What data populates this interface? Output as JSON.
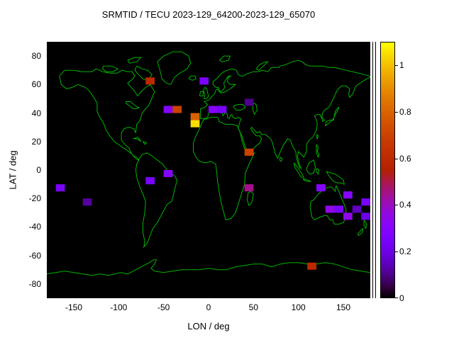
{
  "chart_data": {
    "type": "heatmap",
    "title": "SRMTID / TECU 2023-129_64200-2023-129_65070",
    "xlabel": "LON / deg",
    "ylabel": "LAT / deg",
    "xlim": [
      -180,
      180
    ],
    "ylim": [
      -90,
      90
    ],
    "x_ticks": [
      -150,
      -100,
      -50,
      0,
      50,
      100,
      150
    ],
    "y_ticks": [
      -80,
      -60,
      -40,
      -20,
      0,
      20,
      40,
      60,
      80
    ],
    "grid": false,
    "basemap": "world coastlines drawn in green on black ocean background",
    "cell_size_deg": {
      "lon": 10,
      "lat": 5
    },
    "colorbar": {
      "min": 0,
      "max": 1.1,
      "ticks": [
        0,
        0.2,
        0.4,
        0.6,
        0.8,
        1
      ],
      "palette": "gnuplot pm3d: black - violet - magenta - red - orange - yellow"
    },
    "cells": [
      {
        "lon": -65,
        "lat": 62.5,
        "value": 0.6
      },
      {
        "lon": -5,
        "lat": 62.5,
        "value": 0.25
      },
      {
        "lon": -45,
        "lat": 42.5,
        "value": 0.3
      },
      {
        "lon": -35,
        "lat": 42.5,
        "value": 0.7
      },
      {
        "lon": -15,
        "lat": 37.5,
        "value": 0.8
      },
      {
        "lon": -15,
        "lat": 32.5,
        "value": 1.05
      },
      {
        "lon": 5,
        "lat": 42.5,
        "value": 0.3
      },
      {
        "lon": 15,
        "lat": 42.5,
        "value": 0.25
      },
      {
        "lon": 45,
        "lat": 47.5,
        "value": 0.1
      },
      {
        "lon": 45,
        "lat": 12.5,
        "value": 0.7
      },
      {
        "lon": -45,
        "lat": -2.5,
        "value": 0.3
      },
      {
        "lon": -65,
        "lat": -7.5,
        "value": 0.25
      },
      {
        "lon": -165,
        "lat": -12.5,
        "value": 0.25
      },
      {
        "lon": -135,
        "lat": -22.5,
        "value": 0.12
      },
      {
        "lon": 45,
        "lat": -12.5,
        "value": 0.45
      },
      {
        "lon": 125,
        "lat": -12.5,
        "value": 0.3
      },
      {
        "lon": 155,
        "lat": -17.5,
        "value": 0.3
      },
      {
        "lon": 135,
        "lat": -27.5,
        "value": 0.35
      },
      {
        "lon": 145,
        "lat": -27.5,
        "value": 0.25
      },
      {
        "lon": 155,
        "lat": -32.5,
        "value": 0.35
      },
      {
        "lon": 165,
        "lat": -27.5,
        "value": 0.15
      },
      {
        "lon": 175,
        "lat": -22.5,
        "value": 0.25
      },
      {
        "lon": 175,
        "lat": -32.5,
        "value": 0.2
      },
      {
        "lon": 115,
        "lat": -67.5,
        "value": 0.6
      }
    ]
  },
  "colors": {
    "page_background": "#ffffff",
    "plot_background": "#000000",
    "coastline": "#00b400",
    "text": "#000000",
    "palette_formula": "r=sqrt(t), g=t^3, b=max(0,sin(2*pi*t))"
  }
}
